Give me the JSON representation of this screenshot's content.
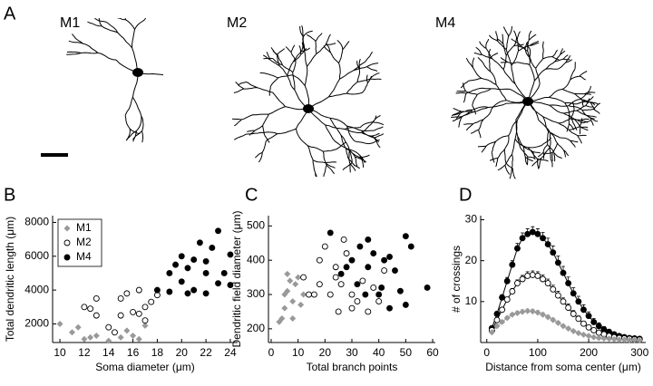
{
  "panels": [
    "A",
    "B",
    "C",
    "D"
  ],
  "neurons": [
    "M1",
    "M2",
    "M4"
  ],
  "chart_data": [
    {
      "type": "scatter",
      "xlabel": "Soma diameter (μm)",
      "ylabel": "Total dendritic length (μm)",
      "xlim": [
        9.4,
        24.6
      ],
      "ylim": [
        900,
        8400
      ],
      "xticks": [
        10,
        12,
        14,
        16,
        18,
        20,
        22,
        24
      ],
      "yticks": [
        2000,
        4000,
        6000,
        8000
      ],
      "legend": "upper left",
      "series": [
        {
          "name": "M1",
          "color": "#999999",
          "marker": "diamond",
          "x": [
            10,
            11,
            11.5,
            12,
            12.5,
            13,
            14,
            14.5,
            15,
            15.5,
            16,
            16.5,
            17
          ],
          "values": [
            2000,
            1500,
            1800,
            1100,
            1200,
            1300,
            1000,
            1500,
            1200,
            1600,
            1300,
            1100,
            1900
          ]
        },
        {
          "name": "M2",
          "color": "#000000",
          "marker": "open-circle",
          "x": [
            12,
            12.5,
            13,
            13,
            14,
            14.5,
            15,
            15,
            15.5,
            16,
            16.5,
            16.5,
            17,
            17,
            17.5,
            18
          ],
          "values": [
            3000,
            2900,
            2500,
            3500,
            1800,
            1500,
            3500,
            2500,
            3800,
            2700,
            4000,
            2600,
            3000,
            2200,
            3300,
            3700
          ]
        },
        {
          "name": "M4",
          "color": "#000000",
          "marker": "circle",
          "x": [
            18,
            19,
            19,
            19.5,
            20,
            20,
            20.5,
            20.5,
            21,
            21,
            21.5,
            22,
            22,
            22,
            22.5,
            23,
            23,
            23.5,
            24,
            24
          ],
          "values": [
            4000,
            5000,
            3900,
            5500,
            6000,
            4500,
            5300,
            3800,
            5800,
            4000,
            6800,
            5000,
            3800,
            5700,
            6500,
            7500,
            4400,
            5000,
            6100,
            4300
          ]
        }
      ]
    },
    {
      "type": "scatter",
      "xlabel": "Total branch points",
      "ylabel": "Dendritic field diameter (μm)",
      "xlim": [
        -1,
        61
      ],
      "ylim": [
        160,
        530
      ],
      "xticks": [
        0,
        10,
        20,
        30,
        40,
        50,
        60
      ],
      "yticks": [
        200,
        300,
        400,
        500
      ],
      "series": [
        {
          "color": "#999999",
          "marker": "diamond",
          "x": [
            3,
            4,
            5,
            5,
            6,
            6,
            7,
            8,
            8,
            9,
            10,
            11,
            12
          ],
          "values": [
            220,
            230,
            300,
            260,
            310,
            360,
            340,
            230,
            280,
            330,
            350,
            270,
            300
          ]
        },
        {
          "color": "#000000",
          "marker": "open-circle",
          "x": [
            12,
            14,
            16,
            18,
            18,
            20,
            22,
            24,
            24,
            25,
            26,
            27,
            28,
            30,
            30,
            32,
            34,
            36,
            38,
            40,
            42
          ],
          "values": [
            350,
            300,
            300,
            330,
            400,
            440,
            300,
            380,
            350,
            250,
            330,
            460,
            420,
            300,
            260,
            280,
            340,
            250,
            320,
            280,
            370
          ]
        },
        {
          "color": "#000000",
          "marker": "circle",
          "x": [
            22,
            26,
            28,
            30,
            32,
            33,
            35,
            36,
            36,
            38,
            40,
            41,
            42,
            44,
            44,
            46,
            48,
            50,
            50,
            52,
            58
          ],
          "values": [
            480,
            360,
            380,
            400,
            330,
            440,
            300,
            460,
            380,
            420,
            300,
            320,
            400,
            260,
            410,
            370,
            310,
            470,
            270,
            440,
            320
          ]
        }
      ]
    },
    {
      "type": "line",
      "xlabel": "Distance from soma center (μm)",
      "ylabel": "# of crossings",
      "xlim": [
        -12,
        312
      ],
      "ylim": [
        0,
        31
      ],
      "xticks": [
        0,
        100,
        200,
        300
      ],
      "yticks": [
        10,
        20,
        30
      ],
      "x": [
        10,
        20,
        30,
        40,
        50,
        60,
        70,
        80,
        90,
        100,
        110,
        120,
        130,
        140,
        150,
        160,
        170,
        180,
        190,
        200,
        210,
        220,
        230,
        240,
        250,
        260,
        270,
        280,
        290,
        300
      ],
      "series": [
        {
          "color": "#000000",
          "marker": "circle",
          "values": [
            3.5,
            7,
            11,
            15,
            19,
            23,
            25.5,
            26.5,
            27,
            26.5,
            25.5,
            24,
            22,
            19.5,
            17,
            14.5,
            12,
            10,
            8,
            6.5,
            5,
            4,
            3.2,
            2.6,
            2,
            1.6,
            1.3,
            1.1,
            1,
            0.9
          ],
          "errors": [
            0.3,
            0.5,
            0.7,
            0.9,
            1,
            1.2,
            1.3,
            1.3,
            1.3,
            1.3,
            1.4,
            1.5,
            1.6,
            1.6,
            1.6,
            1.5,
            1.4,
            1.3,
            1.2,
            1,
            0.9,
            0.8,
            0.7,
            0.6,
            0.5,
            0.4,
            0.4,
            0.3,
            0.3,
            0.3
          ]
        },
        {
          "color": "#000000",
          "marker": "open-circle",
          "values": [
            3,
            5.5,
            8,
            10.5,
            12.5,
            14.5,
            15.5,
            16.3,
            16.5,
            16.3,
            15.5,
            14.5,
            13,
            11.5,
            10,
            8.5,
            7,
            5.8,
            4.6,
            3.7,
            3,
            2.4,
            2,
            1.6,
            1.3,
            1.1,
            1,
            0.9,
            0.8,
            0.7
          ],
          "errors": [
            0.3,
            0.4,
            0.5,
            0.6,
            0.7,
            0.8,
            0.9,
            1,
            1,
            1,
            1,
            1,
            1,
            1,
            0.9,
            0.9,
            0.8,
            0.7,
            0.6,
            0.5,
            0.5,
            0.4,
            0.4,
            0.3,
            0.3,
            0.3,
            0.2,
            0.2,
            0.2,
            0.2
          ]
        },
        {
          "color": "#999999",
          "marker": "diamond",
          "values": [
            2.5,
            4,
            5,
            6,
            6.8,
            7.2,
            7.5,
            7.7,
            7.6,
            7.3,
            6.8,
            6.2,
            5.5,
            4.8,
            4,
            3.4,
            2.8,
            2.3,
            1.9,
            1.6,
            1.3,
            1.1,
            1,
            0.9,
            0.8,
            0.7,
            0.7,
            0.6,
            0.6,
            0.5
          ],
          "errors": [
            0.2,
            0.3,
            0.3,
            0.4,
            0.4,
            0.5,
            0.5,
            0.5,
            0.5,
            0.5,
            0.5,
            0.5,
            0.5,
            0.4,
            0.4,
            0.4,
            0.3,
            0.3,
            0.3,
            0.3,
            0.2,
            0.2,
            0.2,
            0.2,
            0.2,
            0.2,
            0.2,
            0.1,
            0.1,
            0.1
          ]
        }
      ]
    }
  ]
}
